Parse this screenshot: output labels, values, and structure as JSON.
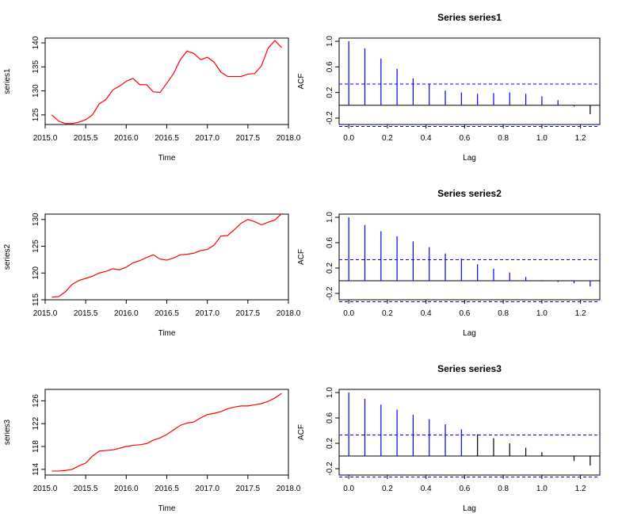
{
  "colors": {
    "series_line": "#ff0000",
    "acf_bar": "#0000ff",
    "acf_bar_after": "#000000",
    "ci_line": "#0000ff"
  },
  "chart_data": [
    {
      "type": "line",
      "panel": "series1-time-series",
      "title": "",
      "xlabel": "Time",
      "ylabel": "series1",
      "xlim": [
        2015.0,
        2018.0
      ],
      "ylim": [
        123,
        141
      ],
      "xticks": [
        2015.0,
        2015.5,
        2016.0,
        2016.5,
        2017.0,
        2017.5,
        2018.0
      ],
      "xtick_labels": [
        "2015.0",
        "2015.5",
        "2016.0",
        "2016.5",
        "2017.0",
        "2017.5",
        "2018.0"
      ],
      "yticks": [
        125,
        130,
        135,
        140
      ],
      "ytick_labels": [
        "125",
        "130",
        "135",
        "140"
      ],
      "x": [
        2015.083,
        2015.167,
        2015.25,
        2015.333,
        2015.417,
        2015.5,
        2015.583,
        2015.667,
        2015.75,
        2015.833,
        2015.917,
        2016.0,
        2016.083,
        2016.167,
        2016.25,
        2016.333,
        2016.417,
        2016.5,
        2016.583,
        2016.667,
        2016.75,
        2016.833,
        2016.917,
        2017.0,
        2017.083,
        2017.167,
        2017.25,
        2017.333,
        2017.417,
        2017.5,
        2017.583,
        2017.667,
        2017.75,
        2017.833,
        2017.917
      ],
      "y": [
        125.0,
        123.7,
        123.2,
        123.2,
        123.5,
        124.0,
        125.0,
        127.3,
        128.2,
        130.2,
        131.0,
        132.0,
        132.6,
        131.3,
        131.3,
        129.8,
        129.7,
        131.6,
        133.6,
        136.5,
        138.3,
        137.8,
        136.5,
        137.0,
        136.0,
        133.9,
        133.0,
        133.0,
        133.0,
        133.5,
        133.6,
        135.2,
        138.9,
        140.5,
        139.0
      ]
    },
    {
      "type": "bar",
      "panel": "series1-acf",
      "title": "Series  series1",
      "xlabel": "Lag",
      "ylabel": "ACF",
      "xlim": [
        -0.05,
        1.3
      ],
      "ylim": [
        -0.3,
        1.05
      ],
      "xticks": [
        0.0,
        0.2,
        0.4,
        0.6,
        0.8,
        1.0,
        1.2
      ],
      "xtick_labels": [
        "0.0",
        "0.2",
        "0.4",
        "0.6",
        "0.8",
        "1.0",
        "1.2"
      ],
      "yticks": [
        -0.2,
        0.2,
        0.6,
        1.0
      ],
      "ytick_labels": [
        "-0.2",
        "0.2",
        "0.6",
        "1.0"
      ],
      "ci": 0.331,
      "blue_bar_count": 15,
      "lags": [
        0.0,
        0.0833,
        0.1667,
        0.25,
        0.3333,
        0.4167,
        0.5,
        0.5833,
        0.6667,
        0.75,
        0.8333,
        0.9167,
        1.0,
        1.0833,
        1.1667,
        1.25
      ],
      "values": [
        1.0,
        0.89,
        0.73,
        0.57,
        0.42,
        0.33,
        0.23,
        0.2,
        0.18,
        0.19,
        0.2,
        0.18,
        0.14,
        0.08,
        -0.02,
        -0.14
      ]
    },
    {
      "type": "line",
      "panel": "series2-time-series",
      "title": "",
      "xlabel": "Time",
      "ylabel": "series2",
      "xlim": [
        2015.0,
        2018.0
      ],
      "ylim": [
        115,
        131
      ],
      "xticks": [
        2015.0,
        2015.5,
        2016.0,
        2016.5,
        2017.0,
        2017.5,
        2018.0
      ],
      "xtick_labels": [
        "2015.0",
        "2015.5",
        "2016.0",
        "2016.5",
        "2017.0",
        "2017.5",
        "2018.0"
      ],
      "yticks": [
        115,
        120,
        125,
        130
      ],
      "ytick_labels": [
        "115",
        "120",
        "125",
        "130"
      ],
      "x": [
        2015.083,
        2015.167,
        2015.25,
        2015.333,
        2015.417,
        2015.5,
        2015.583,
        2015.667,
        2015.75,
        2015.833,
        2015.917,
        2016.0,
        2016.083,
        2016.167,
        2016.25,
        2016.333,
        2016.417,
        2016.5,
        2016.583,
        2016.667,
        2016.75,
        2016.833,
        2016.917,
        2017.0,
        2017.083,
        2017.167,
        2017.25,
        2017.333,
        2017.417,
        2017.5,
        2017.583,
        2017.667,
        2017.75,
        2017.833,
        2017.917
      ],
      "y": [
        115.5,
        115.6,
        116.5,
        117.9,
        118.6,
        119.0,
        119.4,
        120.0,
        120.3,
        120.8,
        120.6,
        121.1,
        121.9,
        122.3,
        122.9,
        123.4,
        122.6,
        122.4,
        122.8,
        123.4,
        123.5,
        123.7,
        124.2,
        124.4,
        125.2,
        126.9,
        127.0,
        128.1,
        129.3,
        130.0,
        129.6,
        129.0,
        129.5,
        129.9,
        131.1
      ]
    },
    {
      "type": "bar",
      "panel": "series2-acf",
      "title": "Series  series2",
      "xlabel": "Lag",
      "ylabel": "ACF",
      "xlim": [
        -0.05,
        1.3
      ],
      "ylim": [
        -0.3,
        1.05
      ],
      "xticks": [
        0.0,
        0.2,
        0.4,
        0.6,
        0.8,
        1.0,
        1.2
      ],
      "xtick_labels": [
        "0.0",
        "0.2",
        "0.4",
        "0.6",
        "0.8",
        "1.0",
        "1.2"
      ],
      "yticks": [
        -0.2,
        0.2,
        0.6,
        1.0
      ],
      "ytick_labels": [
        "-0.2",
        "0.2",
        "0.6",
        "1.0"
      ],
      "ci": 0.331,
      "blue_bar_count": 16,
      "lags": [
        0.0,
        0.0833,
        0.1667,
        0.25,
        0.3333,
        0.4167,
        0.5,
        0.5833,
        0.6667,
        0.75,
        0.8333,
        0.9167,
        1.0,
        1.0833,
        1.1667,
        1.25
      ],
      "values": [
        1.0,
        0.88,
        0.78,
        0.7,
        0.62,
        0.53,
        0.43,
        0.35,
        0.26,
        0.19,
        0.13,
        0.06,
        0.01,
        -0.02,
        -0.04,
        -0.09
      ]
    },
    {
      "type": "line",
      "panel": "series3-time-series",
      "title": "",
      "xlabel": "Time",
      "ylabel": "series3",
      "xlim": [
        2015.0,
        2018.0
      ],
      "ylim": [
        113,
        128
      ],
      "xticks": [
        2015.0,
        2015.5,
        2016.0,
        2016.5,
        2017.0,
        2017.5,
        2018.0
      ],
      "xtick_labels": [
        "2015.0",
        "2015.5",
        "2016.0",
        "2016.5",
        "2017.0",
        "2017.5",
        "2018.0"
      ],
      "yticks": [
        114,
        118,
        122,
        126
      ],
      "ytick_labels": [
        "114",
        "118",
        "122",
        "126"
      ],
      "x": [
        2015.083,
        2015.167,
        2015.25,
        2015.333,
        2015.417,
        2015.5,
        2015.583,
        2015.667,
        2015.75,
        2015.833,
        2015.917,
        2016.0,
        2016.083,
        2016.167,
        2016.25,
        2016.333,
        2016.417,
        2016.5,
        2016.583,
        2016.667,
        2016.75,
        2016.833,
        2016.917,
        2017.0,
        2017.083,
        2017.167,
        2017.25,
        2017.333,
        2017.417,
        2017.5,
        2017.583,
        2017.667,
        2017.75,
        2017.833,
        2017.917
      ],
      "y": [
        113.7,
        113.7,
        113.8,
        114.0,
        114.6,
        115.1,
        116.3,
        117.2,
        117.3,
        117.4,
        117.7,
        118.0,
        118.2,
        118.3,
        118.5,
        119.1,
        119.5,
        120.1,
        120.9,
        121.7,
        122.1,
        122.3,
        123.0,
        123.6,
        123.8,
        124.1,
        124.6,
        124.9,
        125.1,
        125.1,
        125.3,
        125.5,
        125.9,
        126.5,
        127.3
      ]
    },
    {
      "type": "bar",
      "panel": "series3-acf",
      "title": "Series  series3",
      "xlabel": "Lag",
      "ylabel": "ACF",
      "xlim": [
        -0.05,
        1.3
      ],
      "ylim": [
        -0.3,
        1.05
      ],
      "xticks": [
        0.0,
        0.2,
        0.4,
        0.6,
        0.8,
        1.0,
        1.2
      ],
      "xtick_labels": [
        "0.0",
        "0.2",
        "0.4",
        "0.6",
        "0.8",
        "1.0",
        "1.2"
      ],
      "yticks": [
        -0.2,
        0.2,
        0.6,
        1.0
      ],
      "ytick_labels": [
        "-0.2",
        "0.2",
        "0.6",
        "1.0"
      ],
      "ci": 0.331,
      "blue_bar_count": 8,
      "lags": [
        0.0,
        0.0833,
        0.1667,
        0.25,
        0.3333,
        0.4167,
        0.5,
        0.5833,
        0.6667,
        0.75,
        0.8333,
        0.9167,
        1.0,
        1.0833,
        1.1667,
        1.25
      ],
      "values": [
        1.0,
        0.9,
        0.81,
        0.73,
        0.65,
        0.58,
        0.5,
        0.42,
        0.34,
        0.28,
        0.2,
        0.13,
        0.06,
        0.0,
        -0.08,
        -0.15
      ]
    }
  ]
}
